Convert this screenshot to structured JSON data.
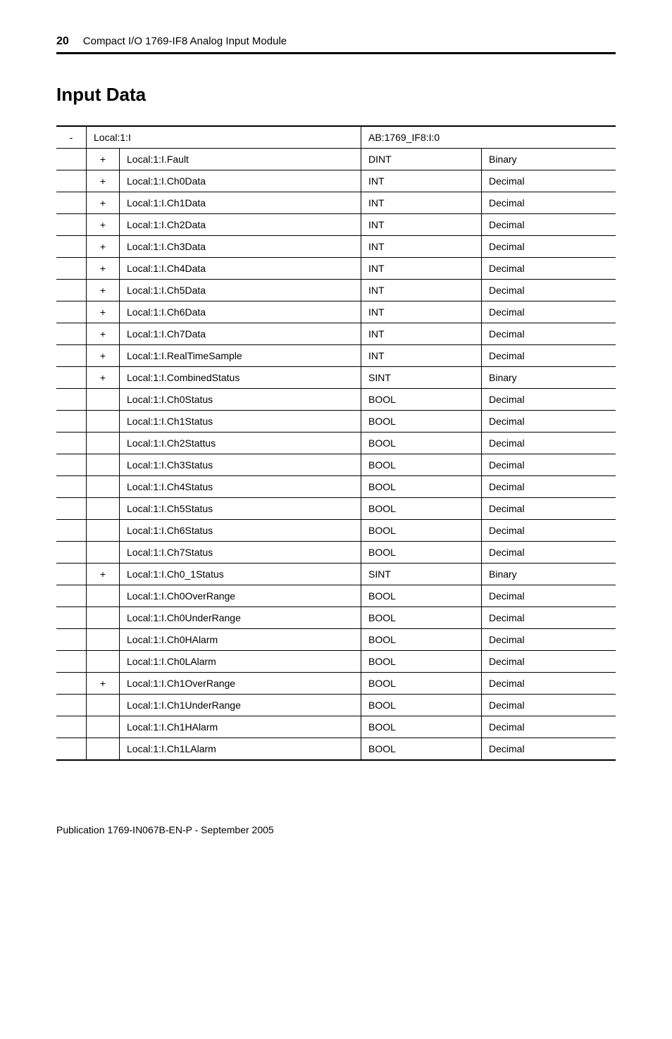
{
  "header": {
    "page_number": "20",
    "doc_title": "Compact I/O 1769-IF8 Analog Input Module"
  },
  "section_heading": "Input Data",
  "footer": "Publication 1769-IN067B-EN-P - September 2005",
  "columns": {
    "type_header": "",
    "style_header": ""
  },
  "rows": [
    {
      "marker": "-",
      "exp": "",
      "name": "Local:1:I",
      "type": "AB:1769_IF8:I:0",
      "style": "",
      "root": true
    },
    {
      "marker": "",
      "exp": "+",
      "name": "Local:1:I.Fault",
      "type": "DINT",
      "style": "Binary"
    },
    {
      "marker": "",
      "exp": "+",
      "name": "Local:1:I.Ch0Data",
      "type": "INT",
      "style": "Decimal"
    },
    {
      "marker": "",
      "exp": "+",
      "name": "Local:1:I.Ch1Data",
      "type": "INT",
      "style": "Decimal"
    },
    {
      "marker": "",
      "exp": "+",
      "name": "Local:1:I.Ch2Data",
      "type": "INT",
      "style": "Decimal"
    },
    {
      "marker": "",
      "exp": "+",
      "name": "Local:1:I.Ch3Data",
      "type": "INT",
      "style": "Decimal"
    },
    {
      "marker": "",
      "exp": "+",
      "name": "Local:1:I.Ch4Data",
      "type": "INT",
      "style": "Decimal"
    },
    {
      "marker": "",
      "exp": "+",
      "name": "Local:1:I.Ch5Data",
      "type": "INT",
      "style": "Decimal"
    },
    {
      "marker": "",
      "exp": "+",
      "name": "Local:1:I.Ch6Data",
      "type": "INT",
      "style": "Decimal"
    },
    {
      "marker": "",
      "exp": "+",
      "name": "Local:1:I.Ch7Data",
      "type": "INT",
      "style": "Decimal"
    },
    {
      "marker": "",
      "exp": "+",
      "name": "Local:1:I.RealTimeSample",
      "type": "INT",
      "style": "Decimal"
    },
    {
      "marker": "",
      "exp": "+",
      "name": "Local:1:I.CombinedStatus",
      "type": "SINT",
      "style": "Binary"
    },
    {
      "marker": "",
      "exp": "",
      "name": "Local:1:I.Ch0Status",
      "type": "BOOL",
      "style": "Decimal"
    },
    {
      "marker": "",
      "exp": "",
      "name": "Local:1:I.Ch1Status",
      "type": "BOOL",
      "style": "Decimal"
    },
    {
      "marker": "",
      "exp": "",
      "name": "Local:1:I.Ch2Stattus",
      "type": "BOOL",
      "style": "Decimal"
    },
    {
      "marker": "",
      "exp": "",
      "name": "Local:1:I.Ch3Status",
      "type": "BOOL",
      "style": "Decimal"
    },
    {
      "marker": "",
      "exp": "",
      "name": "Local:1:I.Ch4Status",
      "type": "BOOL",
      "style": "Decimal"
    },
    {
      "marker": "",
      "exp": "",
      "name": "Local:1:I.Ch5Status",
      "type": "BOOL",
      "style": "Decimal"
    },
    {
      "marker": "",
      "exp": "",
      "name": "Local:1:I.Ch6Status",
      "type": "BOOL",
      "style": "Decimal"
    },
    {
      "marker": "",
      "exp": "",
      "name": "Local:1:I.Ch7Status",
      "type": "BOOL",
      "style": "Decimal"
    },
    {
      "marker": "",
      "exp": "+",
      "name": "Local:1:I.Ch0_1Status",
      "type": "SINT",
      "style": "Binary"
    },
    {
      "marker": "",
      "exp": "",
      "name": "Local:1:I.Ch0OverRange",
      "type": "BOOL",
      "style": "Decimal"
    },
    {
      "marker": "",
      "exp": "",
      "name": "Local:1:I.Ch0UnderRange",
      "type": "BOOL",
      "style": "Decimal"
    },
    {
      "marker": "",
      "exp": "",
      "name": "Local:1:I.Ch0HAlarm",
      "type": "BOOL",
      "style": "Decimal"
    },
    {
      "marker": "",
      "exp": "",
      "name": "Local:1:I.Ch0LAlarm",
      "type": "BOOL",
      "style": "Decimal"
    },
    {
      "marker": "",
      "exp": "+",
      "name": "Local:1:I.Ch1OverRange",
      "type": "BOOL",
      "style": "Decimal"
    },
    {
      "marker": "",
      "exp": "",
      "name": "Local:1:I.Ch1UnderRange",
      "type": "BOOL",
      "style": "Decimal"
    },
    {
      "marker": "",
      "exp": "",
      "name": "Local:1:I.Ch1HAlarm",
      "type": "BOOL",
      "style": "Decimal"
    },
    {
      "marker": "",
      "exp": "",
      "name": "Local:1:I.Ch1LAlarm",
      "type": "BOOL",
      "style": "Decimal"
    }
  ]
}
